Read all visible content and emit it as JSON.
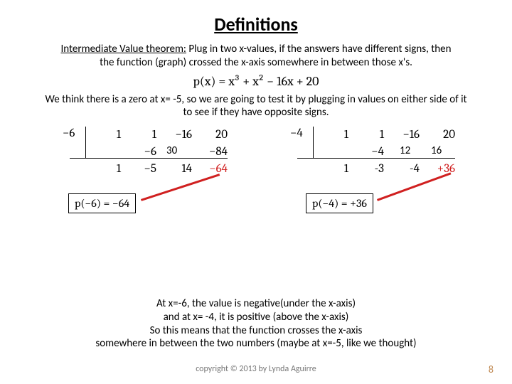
{
  "title": "Definitions",
  "para1_a": "Intermediate Value theorem:",
  "para1_b": " Plug in two x-values, if the answers have different signs, then the function (graph) crossed the x-axis somewhere in between those x's.",
  "formula": "p(x) = x³ + x² − 16x + 20",
  "para2": "We think there is a zero at x= -5, so we are going to test it by plugging in values on either side of it to see if they have opposite signs.",
  "left": {
    "divisor": "−6",
    "r1": [
      "1",
      "1",
      "−16",
      "20"
    ],
    "r2": [
      "",
      "−6",
      "",
      "−84"
    ],
    "r2_overlay": "30",
    "r3": [
      "1",
      "−5",
      "14",
      ""
    ],
    "remainder": "−64",
    "box": "p(−6) = −64"
  },
  "right": {
    "divisor": "−4",
    "r1": [
      "1",
      "1",
      "−16",
      "20"
    ],
    "r2": [
      "",
      "−4",
      "",
      ""
    ],
    "r2_overlay_a": "12",
    "r2_overlay_b": "16",
    "r3": [
      "1",
      "-3",
      "-4",
      ""
    ],
    "remainder": "+36",
    "box": "p(−4) = +36"
  },
  "para3": "At x=-6, the value is negative(under the x-axis)\nand at x= -4, it is positive (above the x-axis)\nSo this means that the function crosses the x-axis\nsomewhere in between the two numbers (maybe at x=-5, like we thought)",
  "footer": "copyright © 2013 by Lynda Aguirre",
  "pagenum": "8",
  "colors": {
    "red": "#d02020",
    "text": "#000000",
    "footer": "#777777",
    "pagenum": "#c08a54",
    "bg": "#ffffff"
  }
}
